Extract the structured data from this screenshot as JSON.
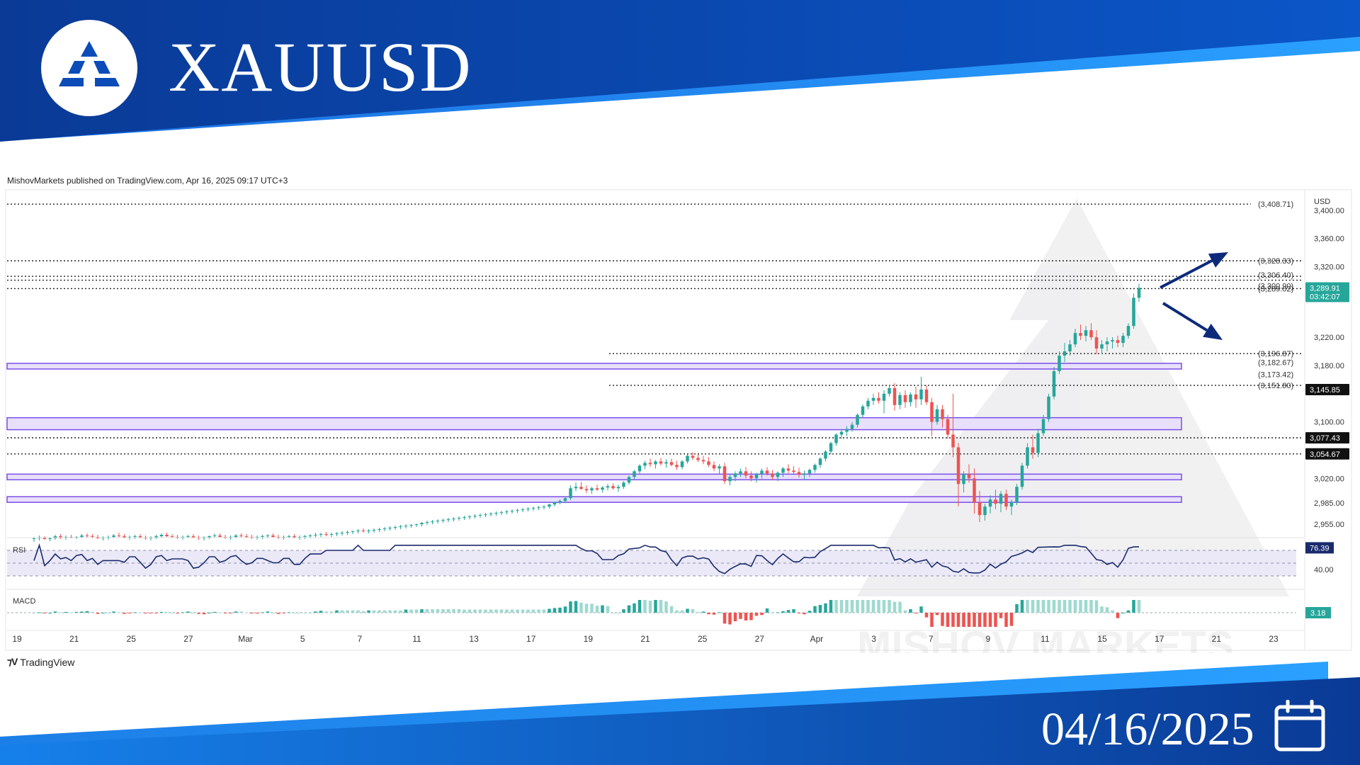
{
  "header": {
    "symbol": "XAUUSD",
    "date": "04/16/2025"
  },
  "publish_info": "MishovMarkets published on TradingView.com, Apr 16, 2025 09:17 UTC+3",
  "footer_brand": "TradingView",
  "watermark": "MISHOV MARKETS",
  "colors": {
    "banner_dark": "#0a3a96",
    "banner_light": "#1f8df0",
    "bull": "#26a69a",
    "bear": "#ef5350",
    "zone": "#7b4ee8",
    "rsi_line": "#1a2a6c"
  },
  "chart_data": {
    "type": "candlestick",
    "currency": "USD",
    "y_ticks": [
      "3,400.00",
      "3,360.00",
      "3,320.00",
      "3,220.00",
      "3,180.00",
      "3,100.00",
      "3,020.00",
      "2,985.00",
      "2,955.00"
    ],
    "x_ticks": [
      "19",
      "21",
      "25",
      "27",
      "Mar",
      "5",
      "7",
      "11",
      "13",
      "17",
      "19",
      "21",
      "25",
      "27",
      "Apr",
      "3",
      "7",
      "9",
      "11",
      "15",
      "17",
      "21",
      "23"
    ],
    "levels": [
      {
        "label": "(3,408.71)",
        "value": 3408.71
      },
      {
        "label": "(3,328.33)",
        "value": 3328.33
      },
      {
        "label": "(3,306.40)",
        "value": 3306.4
      },
      {
        "label": "(3,300.90)",
        "value": 3300.9
      },
      {
        "label": "(3,289.02)",
        "value": 3289.02
      },
      {
        "label": "(3,196.87)",
        "value": 3196.87
      },
      {
        "label": "(3,182.67)",
        "value": 3182.67
      },
      {
        "label": "(3,173.42)",
        "value": 3173.42
      },
      {
        "label": "(3,151.80)",
        "value": 3151.8
      }
    ],
    "price_badges": [
      {
        "label": "3,289.91",
        "sub": "03:42:07",
        "value": 3289.91,
        "style": "green"
      },
      {
        "label": "3,145.85",
        "value": 3145.85,
        "style": "black"
      },
      {
        "label": "3,077.43",
        "value": 3077.43,
        "style": "black"
      },
      {
        "label": "3,054.67",
        "value": 3054.67,
        "style": "black"
      }
    ],
    "zones": [
      [
        3175,
        3183
      ],
      [
        3089,
        3106
      ],
      [
        3018,
        3026
      ],
      [
        2986,
        2994
      ]
    ],
    "candles": [
      [
        2934,
        2937,
        2930,
        2935
      ],
      [
        2935,
        2939,
        2932,
        2936
      ],
      [
        2936,
        2938,
        2933,
        2934
      ],
      [
        2934,
        2937,
        2931,
        2935
      ],
      [
        2935,
        2940,
        2933,
        2938
      ],
      [
        2938,
        2941,
        2934,
        2936
      ],
      [
        2936,
        2939,
        2933,
        2937
      ],
      [
        2937,
        2940,
        2935,
        2936
      ],
      [
        2936,
        2938,
        2934,
        2937
      ],
      [
        2937,
        2941,
        2935,
        2939
      ],
      [
        2939,
        2942,
        2936,
        2938
      ],
      [
        2938,
        2941,
        2935,
        2937
      ],
      [
        2937,
        2940,
        2934,
        2935
      ],
      [
        2935,
        2938,
        2932,
        2936
      ],
      [
        2936,
        2939,
        2933,
        2937
      ],
      [
        2937,
        2941,
        2935,
        2939
      ],
      [
        2939,
        2943,
        2936,
        2938
      ],
      [
        2938,
        2941,
        2935,
        2936
      ],
      [
        2936,
        2939,
        2933,
        2937
      ],
      [
        2937,
        2940,
        2934,
        2938
      ],
      [
        2938,
        2941,
        2935,
        2936
      ],
      [
        2936,
        2939,
        2933,
        2935
      ],
      [
        2935,
        2938,
        2932,
        2936
      ],
      [
        2936,
        2940,
        2934,
        2938
      ],
      [
        2938,
        2942,
        2936,
        2940
      ],
      [
        2940,
        2943,
        2937,
        2938
      ],
      [
        2938,
        2941,
        2935,
        2937
      ],
      [
        2937,
        2940,
        2934,
        2936
      ],
      [
        2936,
        2939,
        2933,
        2937
      ],
      [
        2937,
        2940,
        2935,
        2938
      ],
      [
        2938,
        2941,
        2935,
        2936
      ],
      [
        2936,
        2939,
        2933,
        2935
      ],
      [
        2935,
        2938,
        2932,
        2936
      ],
      [
        2936,
        2939,
        2934,
        2938
      ],
      [
        2938,
        2942,
        2936,
        2939
      ],
      [
        2939,
        2942,
        2936,
        2937
      ],
      [
        2937,
        2940,
        2934,
        2936
      ],
      [
        2936,
        2939,
        2933,
        2937
      ],
      [
        2937,
        2941,
        2935,
        2939
      ],
      [
        2939,
        2942,
        2936,
        2938
      ],
      [
        2938,
        2941,
        2935,
        2937
      ],
      [
        2937,
        2940,
        2934,
        2936
      ],
      [
        2936,
        2939,
        2933,
        2937
      ],
      [
        2937,
        2940,
        2934,
        2938
      ],
      [
        2938,
        2941,
        2935,
        2939
      ],
      [
        2939,
        2942,
        2936,
        2937
      ],
      [
        2937,
        2940,
        2934,
        2936
      ],
      [
        2936,
        2939,
        2933,
        2937
      ],
      [
        2937,
        2940,
        2935,
        2938
      ],
      [
        2938,
        2941,
        2935,
        2936
      ],
      [
        2936,
        2939,
        2933,
        2937
      ],
      [
        2937,
        2940,
        2934,
        2938
      ],
      [
        2938,
        2941,
        2935,
        2939
      ],
      [
        2939,
        2943,
        2936,
        2940
      ],
      [
        2940,
        2943,
        2937,
        2941
      ],
      [
        2941,
        2944,
        2938,
        2940
      ],
      [
        2940,
        2943,
        2937,
        2941
      ],
      [
        2941,
        2944,
        2938,
        2942
      ],
      [
        2942,
        2945,
        2939,
        2943
      ],
      [
        2943,
        2946,
        2940,
        2944
      ],
      [
        2944,
        2946,
        2941,
        2945
      ],
      [
        2945,
        2948,
        2942,
        2946
      ],
      [
        2946,
        2949,
        2943,
        2945
      ],
      [
        2945,
        2948,
        2942,
        2946
      ],
      [
        2946,
        2949,
        2943,
        2947
      ],
      [
        2947,
        2950,
        2944,
        2948
      ],
      [
        2948,
        2951,
        2945,
        2949
      ],
      [
        2949,
        2952,
        2946,
        2950
      ],
      [
        2950,
        2953,
        2947,
        2951
      ],
      [
        2951,
        2954,
        2948,
        2952
      ],
      [
        2952,
        2955,
        2949,
        2953
      ],
      [
        2953,
        2955,
        2950,
        2954
      ],
      [
        2954,
        2956,
        2951,
        2955
      ],
      [
        2955,
        2958,
        2952,
        2957
      ],
      [
        2957,
        2960,
        2954,
        2958
      ],
      [
        2958,
        2961,
        2955,
        2959
      ],
      [
        2959,
        2962,
        2956,
        2960
      ],
      [
        2960,
        2963,
        2957,
        2961
      ],
      [
        2961,
        2964,
        2958,
        2962
      ],
      [
        2962,
        2965,
        2959,
        2963
      ],
      [
        2963,
        2966,
        2960,
        2964
      ],
      [
        2964,
        2967,
        2961,
        2965
      ],
      [
        2965,
        2968,
        2962,
        2966
      ],
      [
        2966,
        2969,
        2963,
        2967
      ],
      [
        2967,
        2970,
        2964,
        2968
      ],
      [
        2968,
        2971,
        2965,
        2969
      ],
      [
        2969,
        2972,
        2966,
        2970
      ],
      [
        2970,
        2973,
        2967,
        2971
      ],
      [
        2971,
        2974,
        2968,
        2972
      ],
      [
        2972,
        2975,
        2969,
        2973
      ],
      [
        2973,
        2976,
        2970,
        2974
      ],
      [
        2974,
        2977,
        2971,
        2975
      ],
      [
        2975,
        2978,
        2972,
        2976
      ],
      [
        2976,
        2979,
        2973,
        2977
      ],
      [
        2977,
        2980,
        2974,
        2978
      ],
      [
        2978,
        2981,
        2975,
        2979
      ],
      [
        2979,
        2982,
        2976,
        2980
      ],
      [
        2980,
        2984,
        2977,
        2983
      ],
      [
        2983,
        2987,
        2980,
        2986
      ],
      [
        2986,
        2990,
        2983,
        2988
      ],
      [
        2988,
        2994,
        2985,
        2992
      ],
      [
        2992,
        3010,
        2989,
        3006
      ],
      [
        3006,
        3014,
        3002,
        3008
      ],
      [
        3008,
        3015,
        3004,
        3005
      ],
      [
        3005,
        3010,
        2999,
        3003
      ],
      [
        3003,
        3008,
        2998,
        3006
      ],
      [
        3006,
        3011,
        3002,
        3004
      ],
      [
        3004,
        3009,
        3000,
        3007
      ],
      [
        3007,
        3012,
        3003,
        3009
      ],
      [
        3009,
        3013,
        3004,
        3006
      ],
      [
        3006,
        3011,
        3001,
        3008
      ],
      [
        3008,
        3016,
        3005,
        3014
      ],
      [
        3014,
        3024,
        3011,
        3022
      ],
      [
        3022,
        3032,
        3019,
        3030
      ],
      [
        3030,
        3040,
        3027,
        3038
      ],
      [
        3038,
        3045,
        3033,
        3042
      ],
      [
        3042,
        3048,
        3036,
        3040
      ],
      [
        3040,
        3046,
        3034,
        3044
      ],
      [
        3044,
        3049,
        3038,
        3041
      ],
      [
        3041,
        3047,
        3035,
        3043
      ],
      [
        3043,
        3048,
        3037,
        3039
      ],
      [
        3039,
        3045,
        3032,
        3036
      ],
      [
        3036,
        3046,
        3033,
        3044
      ],
      [
        3044,
        3054,
        3041,
        3052
      ],
      [
        3052,
        3057,
        3046,
        3049
      ],
      [
        3049,
        3054,
        3043,
        3046
      ],
      [
        3046,
        3052,
        3040,
        3044
      ],
      [
        3044,
        3050,
        3036,
        3039
      ],
      [
        3039,
        3044,
        3030,
        3034
      ],
      [
        3034,
        3040,
        3026,
        3037
      ],
      [
        3037,
        3042,
        3012,
        3016
      ],
      [
        3016,
        3026,
        3010,
        3022
      ],
      [
        3022,
        3030,
        3016,
        3027
      ],
      [
        3027,
        3034,
        3022,
        3030
      ],
      [
        3030,
        3036,
        3020,
        3024
      ],
      [
        3024,
        3030,
        3016,
        3020
      ],
      [
        3020,
        3028,
        3014,
        3026
      ],
      [
        3026,
        3034,
        3020,
        3031
      ],
      [
        3031,
        3036,
        3024,
        3027
      ],
      [
        3027,
        3032,
        3018,
        3022
      ],
      [
        3022,
        3030,
        3016,
        3028
      ],
      [
        3028,
        3036,
        3022,
        3034
      ],
      [
        3034,
        3040,
        3027,
        3031
      ],
      [
        3031,
        3037,
        3025,
        3029
      ],
      [
        3029,
        3035,
        3021,
        3025
      ],
      [
        3025,
        3031,
        3018,
        3027
      ],
      [
        3027,
        3034,
        3022,
        3032
      ],
      [
        3032,
        3041,
        3028,
        3039
      ],
      [
        3039,
        3050,
        3035,
        3048
      ],
      [
        3048,
        3060,
        3044,
        3058
      ],
      [
        3058,
        3072,
        3054,
        3070
      ],
      [
        3070,
        3084,
        3066,
        3082
      ],
      [
        3082,
        3090,
        3076,
        3086
      ],
      [
        3086,
        3094,
        3080,
        3090
      ],
      [
        3090,
        3100,
        3086,
        3096
      ],
      [
        3096,
        3112,
        3092,
        3110
      ],
      [
        3110,
        3125,
        3106,
        3122
      ],
      [
        3122,
        3134,
        3118,
        3130
      ],
      [
        3130,
        3140,
        3124,
        3134
      ],
      [
        3134,
        3142,
        3126,
        3130
      ],
      [
        3130,
        3145,
        3112,
        3140
      ],
      [
        3140,
        3152,
        3136,
        3148
      ],
      [
        3148,
        3155,
        3116,
        3124
      ],
      [
        3124,
        3142,
        3118,
        3138
      ],
      [
        3138,
        3145,
        3120,
        3128
      ],
      [
        3128,
        3142,
        3122,
        3139
      ],
      [
        3139,
        3150,
        3120,
        3132
      ],
      [
        3132,
        3164,
        3124,
        3146
      ],
      [
        3146,
        3152,
        3124,
        3128
      ],
      [
        3128,
        3134,
        3080,
        3100
      ],
      [
        3100,
        3124,
        3096,
        3118
      ],
      [
        3118,
        3124,
        3092,
        3104
      ],
      [
        3104,
        3110,
        3076,
        3082
      ],
      [
        3082,
        3140,
        3050,
        3064
      ],
      [
        3064,
        3070,
        2980,
        3012
      ],
      [
        3012,
        3030,
        3000,
        3026
      ],
      [
        3026,
        3040,
        3014,
        3020
      ],
      [
        3020,
        3034,
        2970,
        2986
      ],
      [
        2986,
        3002,
        2958,
        2968
      ],
      [
        2968,
        2984,
        2960,
        2980
      ],
      [
        2980,
        2996,
        2970,
        2990
      ],
      [
        2990,
        3004,
        2976,
        2984
      ],
      [
        2984,
        3002,
        2972,
        2998
      ],
      [
        2998,
        3004,
        2975,
        2980
      ],
      [
        2980,
        2990,
        2968,
        2986
      ],
      [
        2986,
        3012,
        2982,
        3008
      ],
      [
        3008,
        3042,
        3004,
        3038
      ],
      [
        3038,
        3070,
        3034,
        3064
      ],
      [
        3064,
        3082,
        3048,
        3056
      ],
      [
        3056,
        3090,
        3050,
        3084
      ],
      [
        3084,
        3110,
        3080,
        3104
      ],
      [
        3104,
        3140,
        3100,
        3136
      ],
      [
        3136,
        3178,
        3132,
        3172
      ],
      [
        3172,
        3200,
        3168,
        3194
      ],
      [
        3194,
        3212,
        3185,
        3200
      ],
      [
        3200,
        3216,
        3194,
        3210
      ],
      [
        3210,
        3232,
        3206,
        3226
      ],
      [
        3226,
        3238,
        3216,
        3222
      ],
      [
        3222,
        3236,
        3214,
        3230
      ],
      [
        3230,
        3240,
        3216,
        3220
      ],
      [
        3220,
        3230,
        3196,
        3204
      ],
      [
        3204,
        3216,
        3196,
        3210
      ],
      [
        3210,
        3220,
        3200,
        3214
      ],
      [
        3214,
        3220,
        3204,
        3216
      ],
      [
        3216,
        3222,
        3206,
        3212
      ],
      [
        3212,
        3226,
        3206,
        3222
      ],
      [
        3222,
        3240,
        3218,
        3236
      ],
      [
        3236,
        3282,
        3232,
        3276
      ],
      [
        3276,
        3296,
        3270,
        3290
      ]
    ],
    "rsi": {
      "label": "RSI",
      "current": "76.39",
      "tick": "40.00"
    },
    "macd": {
      "label": "MACD",
      "current": "3.18"
    }
  }
}
